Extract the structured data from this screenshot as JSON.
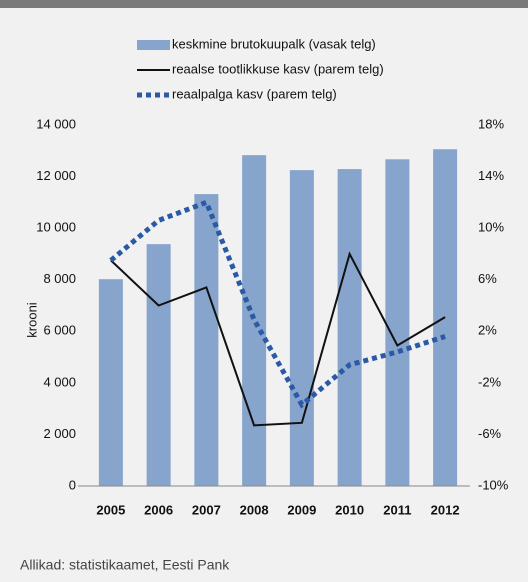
{
  "chart_data": {
    "type": "bar",
    "y_label": "krooni",
    "source": "Allikad: statistikaamet, Eesti Pank",
    "categories": [
      "2005",
      "2006",
      "2007",
      "2008",
      "2009",
      "2010",
      "2011",
      "2012"
    ],
    "series": [
      {
        "name": "keskmine brutokuupalk (vasak telg)",
        "type": "bar",
        "color": "#87a4cc",
        "axis": "y",
        "values": [
          8020,
          9380,
          11320,
          12830,
          12250,
          12290,
          12670,
          13060
        ]
      },
      {
        "name": "reaalse tootlikkuse kasv (parem telg)",
        "type": "line",
        "color": "#111111",
        "linestyle": "solid",
        "axis": "y2",
        "values": [
          7.5,
          4.0,
          5.4,
          -5.3,
          -5.1,
          8.0,
          0.9,
          3.1
        ]
      },
      {
        "name": "reaalpalga kasv (parem telg)",
        "type": "line",
        "color": "#2a5aa5",
        "linestyle": "dotted",
        "axis": "y2",
        "values": [
          7.5,
          10.6,
          12.0,
          2.9,
          -3.7,
          -0.6,
          0.4,
          1.6
        ]
      }
    ],
    "ylim": [
      0,
      14000
    ],
    "yticks": [
      0,
      {
        "value": 2000,
        "label": "2 000"
      },
      {
        "value": 4000,
        "label": "4 000"
      },
      {
        "value": 6000,
        "label": "6 000"
      },
      {
        "value": 8000,
        "label": "8 000"
      },
      {
        "value": 10000,
        "label": "10 000"
      },
      {
        "value": 12000,
        "label": "12 000"
      },
      {
        "value": 14000,
        "label": "14 000"
      }
    ],
    "y2lim": [
      -10,
      18
    ],
    "y2ticks": [
      {
        "value": -10,
        "label": "-10%"
      },
      {
        "value": -6,
        "label": "-6%"
      },
      {
        "value": -2,
        "label": "-2%"
      },
      {
        "value": 2,
        "label": "2%"
      },
      {
        "value": 6,
        "label": "6%"
      },
      {
        "value": 10,
        "label": "10%"
      },
      {
        "value": 14,
        "label": "14%"
      },
      {
        "value": 18,
        "label": "18%"
      }
    ],
    "grid": false
  }
}
